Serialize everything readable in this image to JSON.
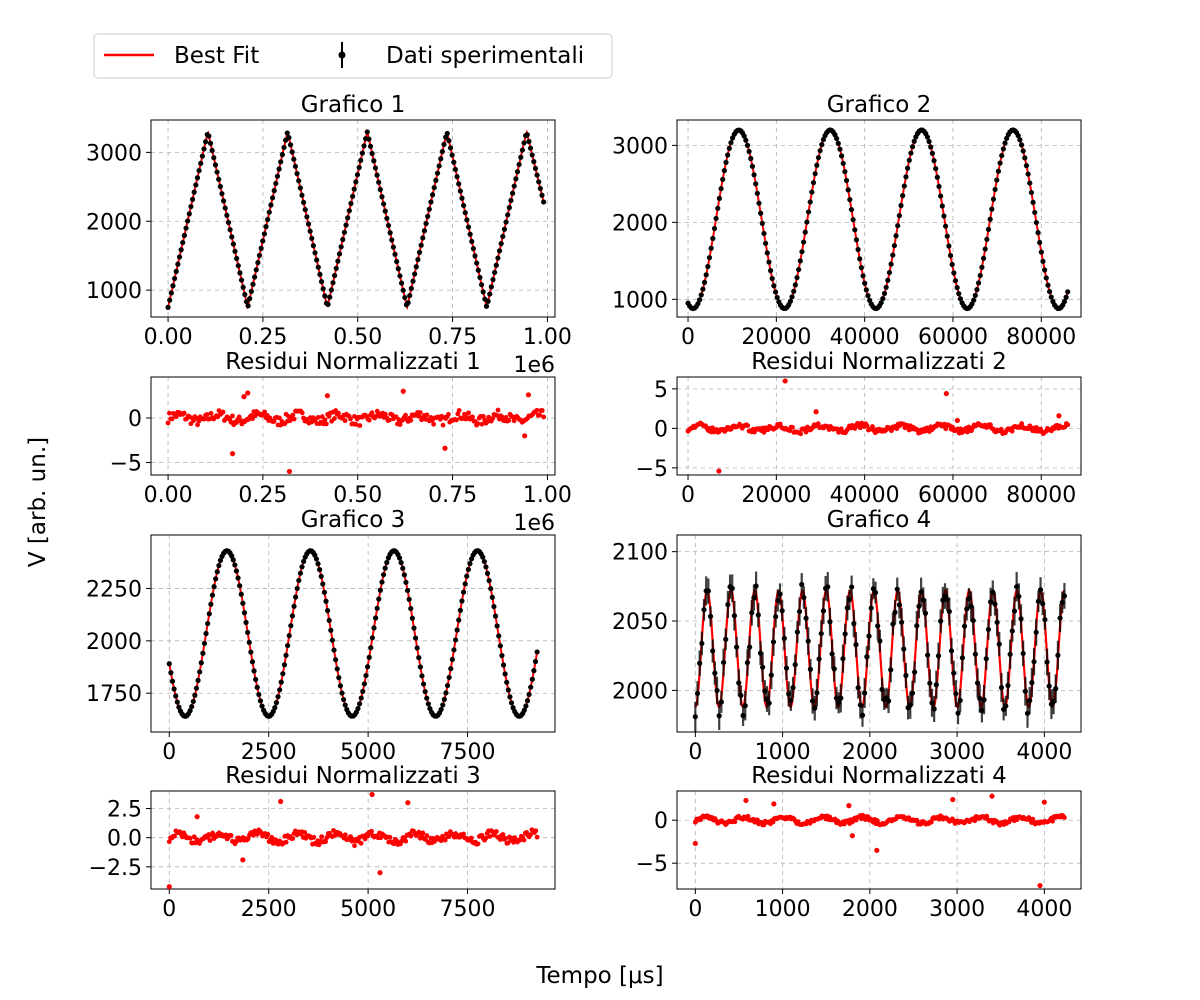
{
  "figure": {
    "legend": {
      "fit_label": "Best Fit",
      "data_label": "Dati sperimentali",
      "placement": "top-left (outside)"
    },
    "xlabel": "Tempo [μs]",
    "ylabel": "V [arb. un.]"
  },
  "colors": {
    "fit": "#ff0000",
    "data": "#000000",
    "residuals": "#ff0000",
    "grid": "#b0b0b0"
  },
  "chart_data": [
    {
      "type": "line",
      "title": "Grafico 1",
      "waveform": "triangle",
      "grid": true,
      "xlim": [
        -0.045,
        1.02
      ],
      "ylim": [
        610,
        3470
      ],
      "x_offset_label": "1e6",
      "xticks": [
        0,
        0.25,
        0.5,
        0.75,
        1.0
      ],
      "xtick_labels": [
        "0.00",
        "0.25",
        "0.50",
        "0.75",
        "1.00"
      ],
      "yticks": [
        1000,
        2000,
        3000
      ],
      "ytick_labels": [
        "1000",
        "2000",
        "3000"
      ],
      "x_start": 0,
      "x_end": 0.99,
      "points": [
        [
          0,
          750
        ],
        [
          0.105,
          3300
        ],
        [
          0.21,
          750
        ],
        [
          0.315,
          3300
        ],
        [
          0.42,
          750
        ],
        [
          0.525,
          3300
        ],
        [
          0.63,
          750
        ],
        [
          0.735,
          3300
        ],
        [
          0.84,
          750
        ],
        [
          0.945,
          3300
        ],
        [
          0.99,
          2280
        ]
      ],
      "residuals": {
        "title": "Residui Normalizzati 1",
        "ylim": [
          -6.4,
          4.6
        ],
        "yticks": [
          -5,
          0
        ],
        "ytick_labels": [
          "−5",
          "0"
        ],
        "xticks": [
          0,
          0.25,
          0.5,
          0.75,
          1.0
        ],
        "xtick_labels": [
          "0.00",
          "0.25",
          "0.50",
          "0.75",
          "1.00"
        ],
        "x_offset_label": "1e6",
        "outliers": [
          [
            0.17,
            -4.0
          ],
          [
            0.2,
            2.4
          ],
          [
            0.21,
            2.8
          ],
          [
            0.32,
            -6.0
          ],
          [
            0.42,
            2.5
          ],
          [
            0.62,
            3.0
          ],
          [
            0.73,
            -3.4
          ],
          [
            0.95,
            2.6
          ],
          [
            0.94,
            -2.0
          ]
        ]
      }
    },
    {
      "type": "line",
      "title": "Grafico 2",
      "waveform": "sine",
      "grid": true,
      "xlim": [
        -2500,
        89000
      ],
      "ylim": [
        770,
        3330
      ],
      "xticks": [
        0,
        20000,
        40000,
        60000,
        80000
      ],
      "xtick_labels": [
        "0",
        "20000",
        "40000",
        "60000",
        "80000"
      ],
      "yticks": [
        1000,
        2000,
        3000
      ],
      "ytick_labels": [
        "1000",
        "2000",
        "3000"
      ],
      "x_start": 0,
      "x_end": 86000,
      "sine": {
        "offset": 2040,
        "amplitude": 1160,
        "period": 20700,
        "peak_x": 11500
      },
      "residuals": {
        "title": "Residui Normalizzati 2",
        "ylim": [
          -5.9,
          6.5
        ],
        "yticks": [
          -5,
          0,
          5
        ],
        "ytick_labels": [
          "−5",
          "0",
          "5"
        ],
        "xticks": [
          0,
          20000,
          40000,
          60000,
          80000
        ],
        "xtick_labels": [
          "0",
          "20000",
          "40000",
          "60000",
          "80000"
        ],
        "outliers": [
          [
            7000,
            -5.4
          ],
          [
            22000,
            6.0
          ],
          [
            29000,
            2.1
          ],
          [
            58500,
            4.4
          ],
          [
            61000,
            1.0
          ],
          [
            84000,
            1.6
          ]
        ]
      }
    },
    {
      "type": "line",
      "title": "Grafico 3",
      "waveform": "sine",
      "grid": true,
      "xlim": [
        -460,
        9700
      ],
      "ylim": [
        1565,
        2505
      ],
      "xticks": [
        0,
        2500,
        5000,
        7500
      ],
      "xtick_labels": [
        "0",
        "2500",
        "5000",
        "7500"
      ],
      "yticks": [
        1750,
        2000,
        2250
      ],
      "ytick_labels": [
        "1750",
        "2000",
        "2250"
      ],
      "x_start": 0,
      "x_end": 9250,
      "sine": {
        "offset": 2035,
        "amplitude": 395,
        "period": 2100,
        "peak_x": 1450
      },
      "residuals": {
        "title": "Residui Normalizzati 3",
        "ylim": [
          -4.4,
          4.0
        ],
        "yticks": [
          -2.5,
          0,
          2.5
        ],
        "ytick_labels": [
          "−2.5",
          "0.0",
          "2.5"
        ],
        "xticks": [
          0,
          2500,
          5000,
          7500
        ],
        "xtick_labels": [
          "0",
          "2500",
          "5000",
          "7500"
        ],
        "outliers": [
          [
            0,
            -4.2
          ],
          [
            1850,
            -1.9
          ],
          [
            2800,
            3.1
          ],
          [
            5100,
            3.7
          ],
          [
            5300,
            -3.0
          ],
          [
            6000,
            3.0
          ],
          [
            700,
            1.8
          ]
        ]
      }
    },
    {
      "type": "line",
      "title": "Grafico 4",
      "waveform": "sine",
      "grid": true,
      "xlim": [
        -210,
        4420
      ],
      "ylim": [
        1970,
        2112
      ],
      "xticks": [
        0,
        1000,
        2000,
        3000,
        4000
      ],
      "xtick_labels": [
        "0",
        "1000",
        "2000",
        "3000",
        "4000"
      ],
      "yticks": [
        2000,
        2050,
        2100
      ],
      "ytick_labels": [
        "2000",
        "2050",
        "2100"
      ],
      "x_start": 0,
      "x_end": 4230,
      "sine": {
        "offset": 2030,
        "amplitude": 42,
        "period": 273,
        "peak_x": 136
      },
      "residuals": {
        "title": "Residui Normalizzati 4",
        "ylim": [
          -8.0,
          3.4
        ],
        "yticks": [
          -5,
          0
        ],
        "ytick_labels": [
          "−5",
          "0"
        ],
        "xticks": [
          0,
          1000,
          2000,
          3000,
          4000
        ],
        "xtick_labels": [
          "0",
          "1000",
          "2000",
          "3000",
          "4000"
        ],
        "outliers": [
          [
            0,
            -2.7
          ],
          [
            580,
            2.3
          ],
          [
            900,
            1.9
          ],
          [
            1760,
            1.7
          ],
          [
            1800,
            -1.8
          ],
          [
            2080,
            -3.5
          ],
          [
            2950,
            2.4
          ],
          [
            3400,
            2.8
          ],
          [
            3950,
            -7.6
          ],
          [
            4000,
            2.1
          ]
        ]
      }
    }
  ]
}
